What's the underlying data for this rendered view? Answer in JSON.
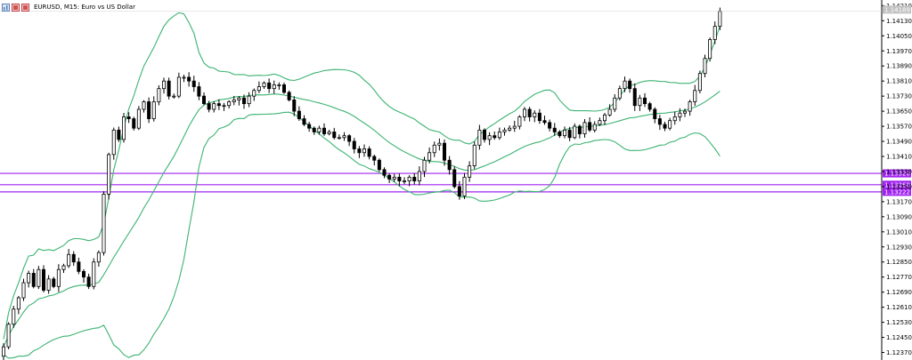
{
  "window": {
    "title": "EURUSD, M15:  Euro vs US Dollar",
    "icons": [
      "chart-icon",
      "flag-icon",
      "flag-icon"
    ]
  },
  "colors": {
    "bull_body": "#ffffff",
    "bear_body": "#000000",
    "candle_outline": "#000000",
    "bands": "#3cb371",
    "levels": "#a020f0",
    "current_price_bg": "#c0c0c0",
    "axis": "#000000"
  },
  "chart_data": {
    "type": "candlestick",
    "symbol": "EURUSD",
    "timeframe": "M15",
    "indicator": "Bollinger Bands",
    "ylim": [
      1.1233,
      1.1424
    ],
    "y_ticks": [
      "1.14210",
      "1.14130",
      "1.14050",
      "1.13970",
      "1.13890",
      "1.13810",
      "1.13730",
      "1.13650",
      "1.13570",
      "1.13490",
      "1.13410",
      "1.13330",
      "1.13250",
      "1.13170",
      "1.13090",
      "1.13010",
      "1.12930",
      "1.12850",
      "1.12770",
      "1.12690",
      "1.12610",
      "1.12530",
      "1.12450",
      "1.12370"
    ],
    "levels": [
      {
        "label": "1.13320",
        "value": 1.1332
      },
      {
        "label": "1.13260",
        "value": 1.1326
      },
      {
        "label": "1.13222",
        "value": 1.13222
      }
    ],
    "current_price": {
      "label": "1.14189",
      "value": 1.14189
    },
    "closes": [
      1.124,
      1.1252,
      1.126,
      1.1266,
      1.1274,
      1.1279,
      1.1272,
      1.1281,
      1.127,
      1.1276,
      1.1272,
      1.1281,
      1.1283,
      1.1289,
      1.1285,
      1.128,
      1.1277,
      1.1272,
      1.1285,
      1.129,
      1.1321,
      1.1342,
      1.1355,
      1.135,
      1.1362,
      1.1361,
      1.1356,
      1.1366,
      1.137,
      1.1361,
      1.137,
      1.1377,
      1.1381,
      1.1373,
      1.1373,
      1.1383,
      1.1383,
      1.1381,
      1.1378,
      1.1373,
      1.1369,
      1.1366,
      1.1369,
      1.1368,
      1.1368,
      1.137,
      1.1371,
      1.1372,
      1.1369,
      1.1373,
      1.1376,
      1.1378,
      1.138,
      1.1377,
      1.1379,
      1.1379,
      1.1375,
      1.1371,
      1.1365,
      1.1361,
      1.1358,
      1.1356,
      1.1354,
      1.1356,
      1.1353,
      1.1354,
      1.1351,
      1.1351,
      1.1352,
      1.1349,
      1.1345,
      1.1343,
      1.1345,
      1.1341,
      1.1339,
      1.1334,
      1.1331,
      1.1329,
      1.133,
      1.1328,
      1.1328,
      1.133,
      1.1328,
      1.1333,
      1.1339,
      1.1343,
      1.1347,
      1.1348,
      1.1339,
      1.1334,
      1.1325,
      1.132,
      1.133,
      1.1336,
      1.1347,
      1.1355,
      1.135,
      1.1352,
      1.1351,
      1.1354,
      1.1355,
      1.1356,
      1.1357,
      1.1362,
      1.1366,
      1.1362,
      1.1364,
      1.136,
      1.1359,
      1.1356,
      1.1354,
      1.1352,
      1.1355,
      1.1351,
      1.1357,
      1.1353,
      1.1359,
      1.1355,
      1.1358,
      1.136,
      1.1363,
      1.1366,
      1.1372,
      1.1377,
      1.1381,
      1.1377,
      1.1368,
      1.1372,
      1.1369,
      1.1366,
      1.1361,
      1.1358,
      1.1356,
      1.136,
      1.1362,
      1.1364,
      1.1365,
      1.137,
      1.1376,
      1.1385,
      1.1393,
      1.1403,
      1.141,
      1.1418
    ]
  }
}
